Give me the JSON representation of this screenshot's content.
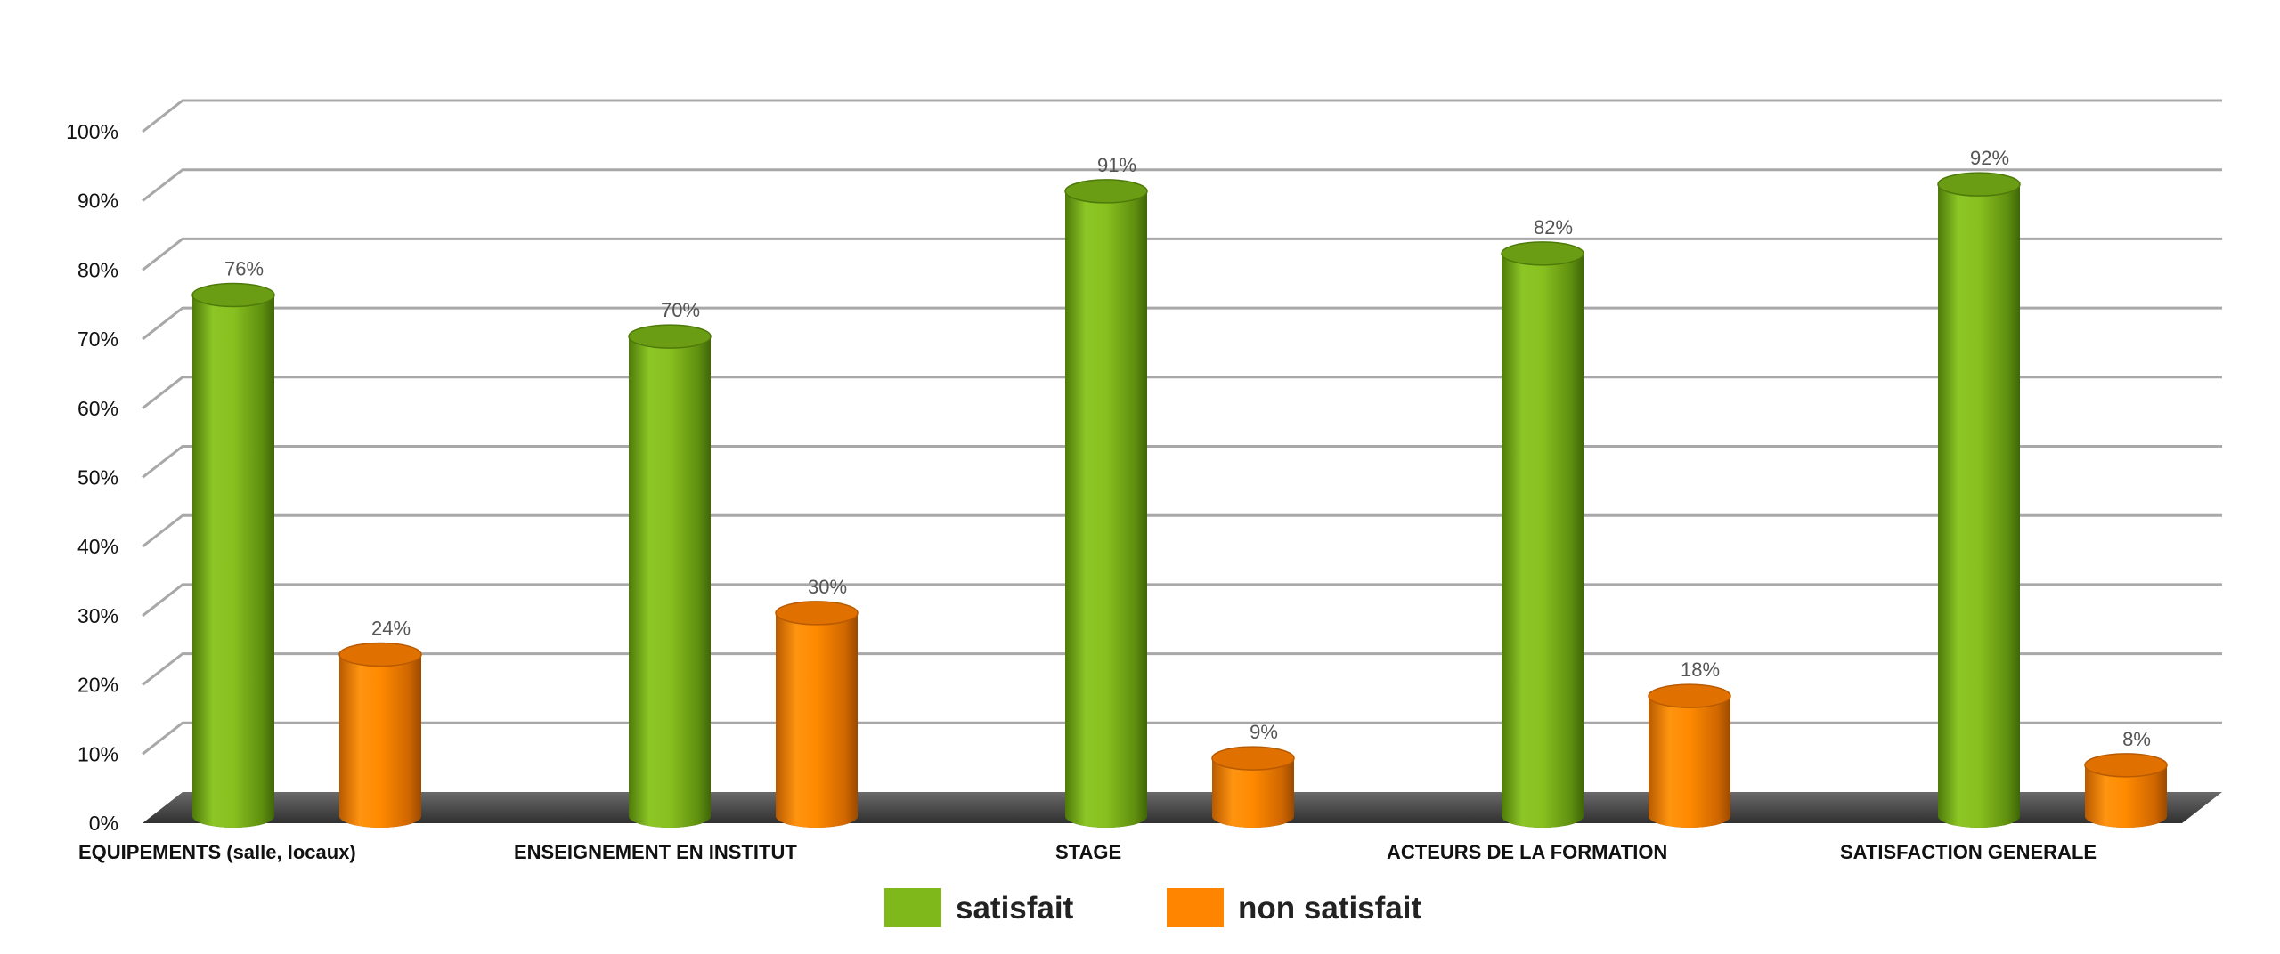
{
  "chart_data": {
    "type": "bar",
    "title": "",
    "xlabel": "",
    "ylabel": "",
    "ylim": [
      0,
      100
    ],
    "y_ticks": [
      "0%",
      "10%",
      "20%",
      "30%",
      "40%",
      "50%",
      "60%",
      "70%",
      "80%",
      "90%",
      "100%"
    ],
    "categories": [
      "EQUIPEMENTS (salle, locaux)",
      "ENSEIGNEMENT EN INSTITUT",
      "STAGE",
      "ACTEURS DE LA FORMATION",
      "SATISFACTION GENERALE"
    ],
    "series": [
      {
        "name": "satisfait",
        "color": "#7fb81a",
        "values": [
          76,
          70,
          91,
          82,
          92
        ],
        "labels": [
          "76%",
          "70%",
          "91%",
          "82%",
          "92%"
        ]
      },
      {
        "name": "non satisfait",
        "color": "#ff8400",
        "values": [
          24,
          30,
          9,
          18,
          8
        ],
        "labels": [
          "24%",
          "30%",
          "9%",
          "18%",
          "8%"
        ]
      }
    ],
    "grid": true,
    "legend_position": "bottom",
    "style": "3d-cylinder"
  }
}
